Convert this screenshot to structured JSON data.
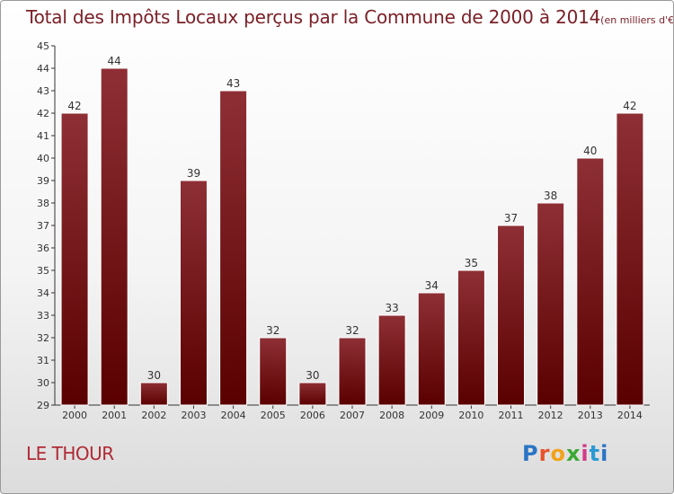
{
  "title": "Total des Impôts Locaux perçus par la Commune de 2000 à 2014",
  "unit": "(en milliers d'€)",
  "commune": "LE THOUR",
  "logo_text": "Proxiti",
  "colors": {
    "bar_top": "#8e2f35",
    "bar_bottom": "#5a0000",
    "title": "#7a2027",
    "commune": "#b02a35"
  },
  "chart_data": {
    "type": "bar",
    "categories": [
      "2000",
      "2001",
      "2002",
      "2003",
      "2004",
      "2005",
      "2006",
      "2007",
      "2008",
      "2009",
      "2010",
      "2011",
      "2012",
      "2013",
      "2014"
    ],
    "values": [
      42,
      44,
      30,
      39,
      43,
      32,
      30,
      32,
      33,
      34,
      35,
      37,
      38,
      40,
      42
    ],
    "ylim": [
      29,
      45
    ],
    "yticks": [
      29,
      30,
      31,
      32,
      33,
      34,
      35,
      36,
      37,
      38,
      39,
      40,
      41,
      42,
      43,
      44,
      45
    ],
    "grid": false,
    "xlabel": "",
    "ylabel": ""
  }
}
